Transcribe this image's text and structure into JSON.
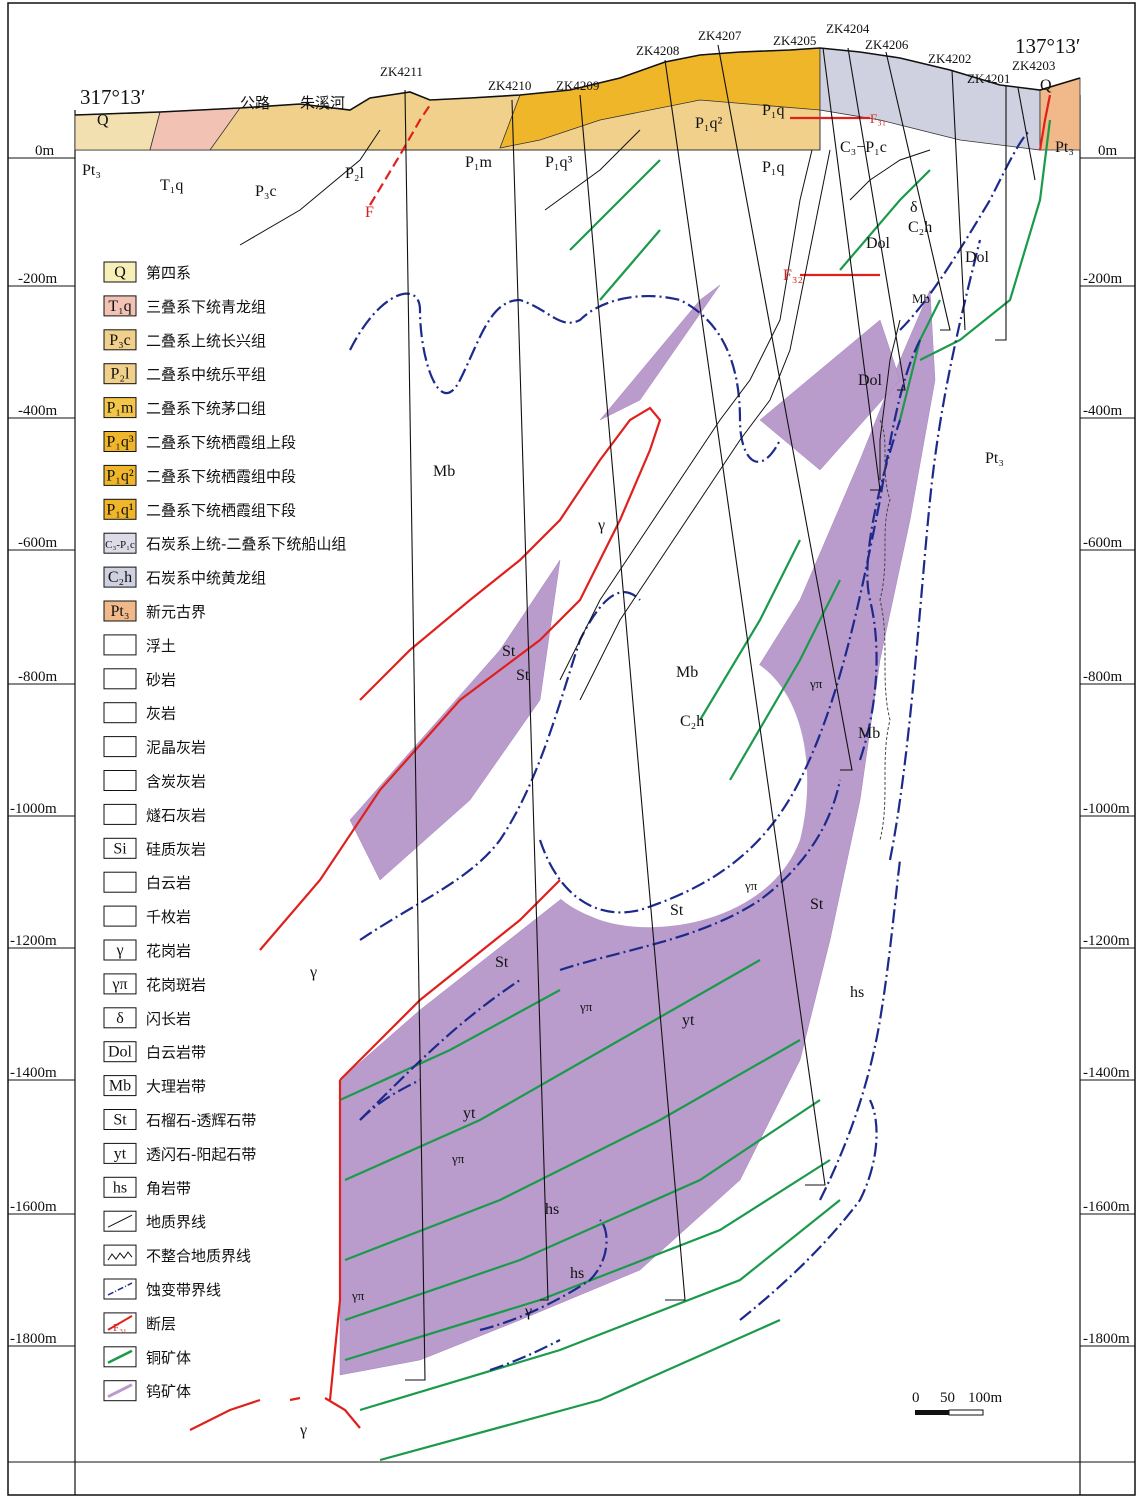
{
  "coords": {
    "left": "317°13′",
    "right": "137°13′"
  },
  "surface_labels": {
    "road": "公路",
    "river": "朱溪河",
    "q_left": "Q",
    "q_right": "Q"
  },
  "drill_holes": [
    "ZK4211",
    "ZK4210",
    "ZK4209",
    "ZK4208",
    "ZK4207",
    "ZK4205",
    "ZK4204",
    "ZK4206",
    "ZK4202",
    "ZK4201",
    "ZK4203"
  ],
  "depth_labels": [
    "0m",
    "-200m",
    "-400m",
    "-600m",
    "-800m",
    "-1000m",
    "-1200m",
    "-1400m",
    "-1600m",
    "-1800m"
  ],
  "strata_labels": [
    "Pt₃",
    "T₁q",
    "P₃c",
    "P₂l",
    "P₁m",
    "P₁q³",
    "P₁q²",
    "P₁q",
    "P₁q",
    "C₃−P₁c",
    "Pt₃"
  ],
  "fault_labels": {
    "f": "F",
    "f31": "F₃₁",
    "f32": "F₃₂"
  },
  "zone_labels": {
    "mb_left": "Mb",
    "gamma_upper": "γ",
    "pt3_right": "Pt₃",
    "dol_mid": "Dol",
    "dol_top": "Dol",
    "dol_right": "Dol",
    "delta": "δ",
    "c2h_top": "C₂h",
    "mb_small": "Mb",
    "st_a": "St",
    "st_b": "St",
    "mb_center": "Mb",
    "c2h_center": "C₂h",
    "mb_right": "Mb",
    "gp_right": "γπ",
    "st_c": "St",
    "st_d": "St",
    "st_big": "St",
    "gamma_left": "γ",
    "hs_right": "hs",
    "gp_mid": "γπ",
    "yt_a": "yt",
    "yt_b": "yt",
    "gp_low": "γπ",
    "hs_low": "hs",
    "hs_bottom": "hs",
    "gamma_bottom": "γ",
    "gp_bottom": "γπ",
    "gamma_base": "γ"
  },
  "legend": [
    {
      "code": "Q",
      "label": "第四系",
      "color": "#f7efb8"
    },
    {
      "code": "T₁q",
      "label": "三叠系下统青龙组",
      "color": "#f2c3b5"
    },
    {
      "code": "P₃c",
      "label": "二叠系上统长兴组",
      "color": "#f0d08a"
    },
    {
      "code": "P₂l",
      "label": "二叠系中统乐平组",
      "color": "#f0d08a"
    },
    {
      "code": "P₁m",
      "label": "二叠系下统茅口组",
      "color": "#f3c64a"
    },
    {
      "code": "P₁q³",
      "label": "二叠系下统栖霞组上段",
      "color": "#f0b62a"
    },
    {
      "code": "P₁q²",
      "label": "二叠系下统栖霞组中段",
      "color": "#f0b62a"
    },
    {
      "code": "P₁q¹",
      "label": "二叠系下统栖霞组下段",
      "color": "#f0b62a"
    },
    {
      "code": "C₃-P₁c",
      "label": "石炭系上统-二叠系下统船山组",
      "color": "#dcdbe7"
    },
    {
      "code": "C₂h",
      "label": "石炭系中统黄龙组",
      "color": "#cfd0e0"
    },
    {
      "code": "Pt₃",
      "label": "新元古界",
      "color": "#f1b989"
    },
    {
      "code": "",
      "label": "浮土",
      "color": "#ffffff"
    },
    {
      "code": "",
      "label": "砂岩",
      "color": "#ffffff"
    },
    {
      "code": "",
      "label": "灰岩",
      "color": "#ffffff"
    },
    {
      "code": "",
      "label": "泥晶灰岩",
      "color": "#ffffff"
    },
    {
      "code": "",
      "label": "含炭灰岩",
      "color": "#ffffff"
    },
    {
      "code": "",
      "label": "燧石灰岩",
      "color": "#ffffff"
    },
    {
      "code": "Si",
      "label": "硅质灰岩",
      "color": "#ffffff"
    },
    {
      "code": "",
      "label": "白云岩",
      "color": "#ffffff"
    },
    {
      "code": "",
      "label": "千枚岩",
      "color": "#ffffff"
    },
    {
      "code": "γ",
      "label": "花岗岩",
      "color": "#ffffff"
    },
    {
      "code": "γπ",
      "label": "花岗斑岩",
      "color": "#ffffff"
    },
    {
      "code": "δ",
      "label": "闪长岩",
      "color": "#ffffff"
    },
    {
      "code": "Dol",
      "label": "白云岩带",
      "color": "#ffffff"
    },
    {
      "code": "Mb",
      "label": "大理岩带",
      "color": "#ffffff"
    },
    {
      "code": "St",
      "label": "石榴石-透辉石带",
      "color": "#ffffff"
    },
    {
      "code": "yt",
      "label": "透闪石-阳起石带",
      "color": "#ffffff"
    },
    {
      "code": "hs",
      "label": "角岩带",
      "color": "#ffffff"
    },
    {
      "code": "",
      "label": "地质界线",
      "color": "#ffffff"
    },
    {
      "code": "",
      "label": "不整合地质界线",
      "color": "#ffffff"
    },
    {
      "code": "",
      "label": "蚀变带界线",
      "color": "#ffffff"
    },
    {
      "code": "F₃₁",
      "label": "断层",
      "color": "#ffffff"
    },
    {
      "code": "",
      "label": "铜矿体",
      "color": "#ffffff"
    },
    {
      "code": "",
      "label": "钨矿体",
      "color": "#ffffff"
    }
  ],
  "scale_bar": {
    "labels": [
      "0",
      "50",
      "100m"
    ]
  },
  "colors": {
    "copper": "#1a9a4a",
    "tungsten": "#b99ccc",
    "fault": "#e0201c",
    "alteration": "#1d2a8c"
  }
}
